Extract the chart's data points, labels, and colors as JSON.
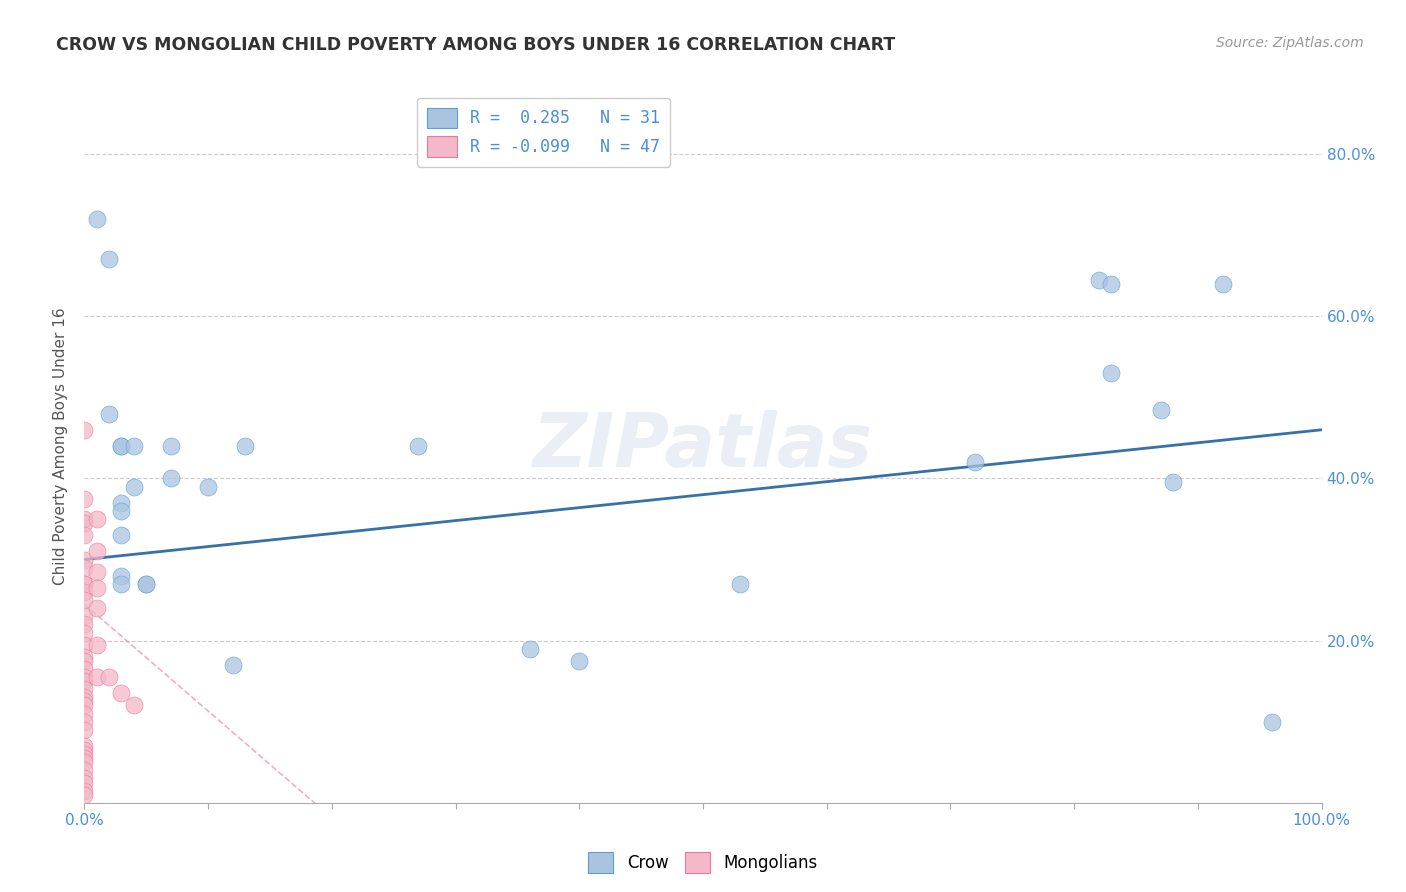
{
  "title": "CROW VS MONGOLIAN CHILD POVERTY AMONG BOYS UNDER 16 CORRELATION CHART",
  "source": "Source: ZipAtlas.com",
  "ylabel": "Child Poverty Among Boys Under 16",
  "crow_R": 0.285,
  "crow_N": 31,
  "mongolian_R": -0.099,
  "mongolian_N": 47,
  "crow_color": "#aac4e0",
  "crow_edge_color": "#5a9fd4",
  "crow_line_color": "#3472a8",
  "mongolian_color": "#f4b8c8",
  "mongolian_edge_color": "#e8799a",
  "mongolian_line_color": "#e8799a",
  "watermark": "ZIPatlas",
  "crow_points": [
    [
      0.01,
      0.72
    ],
    [
      0.02,
      0.67
    ],
    [
      0.02,
      0.48
    ],
    [
      0.03,
      0.44
    ],
    [
      0.03,
      0.44
    ],
    [
      0.03,
      0.37
    ],
    [
      0.03,
      0.36
    ],
    [
      0.03,
      0.33
    ],
    [
      0.03,
      0.28
    ],
    [
      0.03,
      0.27
    ],
    [
      0.04,
      0.44
    ],
    [
      0.04,
      0.39
    ],
    [
      0.05,
      0.27
    ],
    [
      0.05,
      0.27
    ],
    [
      0.07,
      0.44
    ],
    [
      0.07,
      0.4
    ],
    [
      0.1,
      0.39
    ],
    [
      0.12,
      0.17
    ],
    [
      0.13,
      0.44
    ],
    [
      0.27,
      0.44
    ],
    [
      0.36,
      0.19
    ],
    [
      0.4,
      0.175
    ],
    [
      0.53,
      0.27
    ],
    [
      0.72,
      0.42
    ],
    [
      0.82,
      0.645
    ],
    [
      0.83,
      0.64
    ],
    [
      0.83,
      0.53
    ],
    [
      0.87,
      0.485
    ],
    [
      0.88,
      0.395
    ],
    [
      0.92,
      0.64
    ],
    [
      0.96,
      0.1
    ]
  ],
  "mongolian_points": [
    [
      0.0,
      0.46
    ],
    [
      0.0,
      0.375
    ],
    [
      0.0,
      0.35
    ],
    [
      0.0,
      0.345
    ],
    [
      0.0,
      0.33
    ],
    [
      0.0,
      0.3
    ],
    [
      0.0,
      0.29
    ],
    [
      0.0,
      0.27
    ],
    [
      0.0,
      0.27
    ],
    [
      0.0,
      0.26
    ],
    [
      0.0,
      0.25
    ],
    [
      0.0,
      0.23
    ],
    [
      0.0,
      0.22
    ],
    [
      0.0,
      0.21
    ],
    [
      0.0,
      0.195
    ],
    [
      0.0,
      0.18
    ],
    [
      0.0,
      0.175
    ],
    [
      0.0,
      0.165
    ],
    [
      0.0,
      0.155
    ],
    [
      0.0,
      0.15
    ],
    [
      0.0,
      0.14
    ],
    [
      0.0,
      0.13
    ],
    [
      0.0,
      0.125
    ],
    [
      0.0,
      0.12
    ],
    [
      0.0,
      0.11
    ],
    [
      0.0,
      0.1
    ],
    [
      0.0,
      0.09
    ],
    [
      0.0,
      0.07
    ],
    [
      0.0,
      0.065
    ],
    [
      0.0,
      0.06
    ],
    [
      0.0,
      0.055
    ],
    [
      0.0,
      0.05
    ],
    [
      0.0,
      0.04
    ],
    [
      0.0,
      0.03
    ],
    [
      0.0,
      0.025
    ],
    [
      0.0,
      0.015
    ],
    [
      0.0,
      0.01
    ],
    [
      0.01,
      0.35
    ],
    [
      0.01,
      0.31
    ],
    [
      0.01,
      0.285
    ],
    [
      0.01,
      0.265
    ],
    [
      0.01,
      0.24
    ],
    [
      0.01,
      0.195
    ],
    [
      0.01,
      0.155
    ],
    [
      0.02,
      0.155
    ],
    [
      0.03,
      0.135
    ],
    [
      0.04,
      0.12
    ]
  ],
  "crow_line": [
    0.0,
    1.0,
    0.3,
    0.46
  ],
  "mong_line": [
    0.0,
    0.22,
    0.245,
    -0.045
  ],
  "xlim": [
    0.0,
    1.0
  ],
  "ylim": [
    0.0,
    0.88
  ],
  "xticks": [
    0.0,
    0.1,
    0.2,
    0.3,
    0.4,
    0.5,
    0.6,
    0.7,
    0.8,
    0.9,
    1.0
  ],
  "yticks": [
    0.0,
    0.2,
    0.4,
    0.6,
    0.8
  ],
  "grid_yticks": [
    0.2,
    0.4,
    0.6,
    0.8
  ],
  "background_color": "#ffffff",
  "grid_color": "#cccccc",
  "tick_label_color": "#4a90d9",
  "title_color": "#333333",
  "source_color": "#999999"
}
